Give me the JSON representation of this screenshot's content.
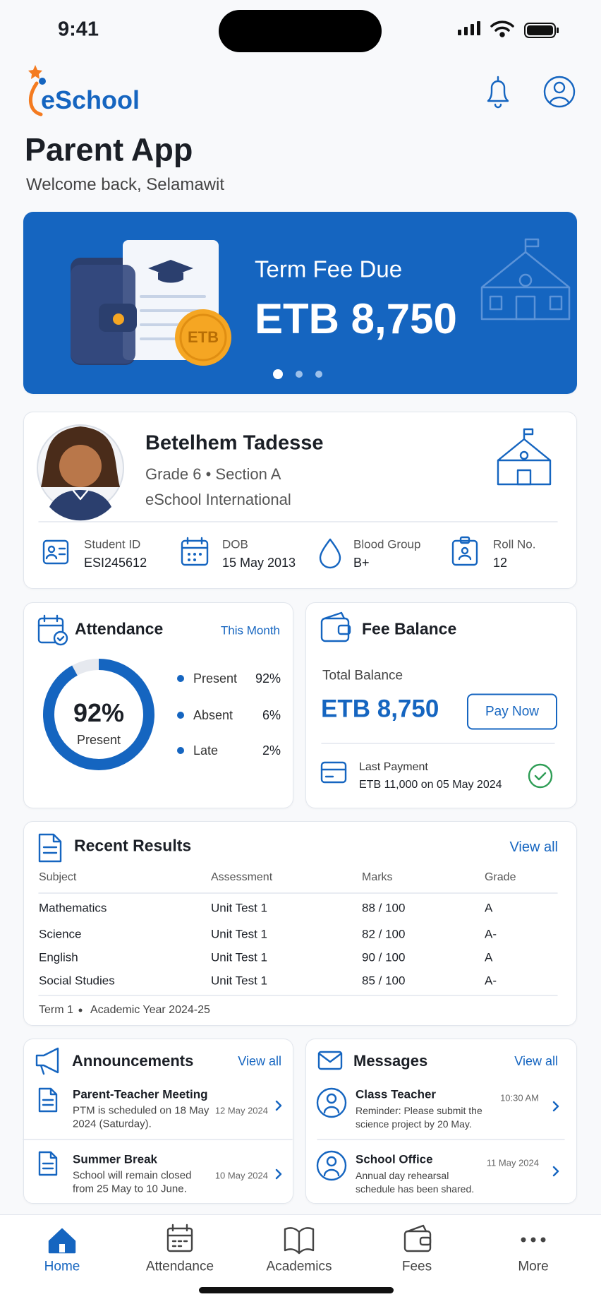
{
  "status_bar": {
    "time": "9:41"
  },
  "header": {
    "logo": "eSchool",
    "title": "Parent App",
    "subtitle": "Welcome back, Selamawit"
  },
  "banner": {
    "title": "Term Fee Due",
    "amount": "ETB 8,750",
    "coin_label": "ETB"
  },
  "student": {
    "name": "Betelhem Tadesse",
    "grade": "Grade 6 • Section A",
    "school": "eSchool International",
    "fields": [
      {
        "label": "Student ID",
        "value": "ESI245612"
      },
      {
        "label": "DOB",
        "value": "15 May 2013"
      },
      {
        "label": "Blood Group",
        "value": "B+"
      },
      {
        "label": "Roll No.",
        "value": "12"
      }
    ]
  },
  "attendance": {
    "title": "Attendance",
    "period": "This Month",
    "center_value": "92%",
    "center_label": "Present",
    "items": [
      {
        "label": "Present",
        "value": "92%"
      },
      {
        "label": "Absent",
        "value": "6%"
      },
      {
        "label": "Late",
        "value": "2%"
      }
    ]
  },
  "fee_balance": {
    "title": "Fee Balance",
    "total_label": "Total Balance",
    "total": "ETB 8,750",
    "button": "Pay Now",
    "last_payment_label": "Last Payment",
    "last_payment": "ETB 11,000 on 05 May 2024"
  },
  "results": {
    "title": "Recent Results",
    "link": "View all",
    "columns": [
      "Subject",
      "Assessment",
      "Marks",
      "Grade"
    ],
    "rows": [
      [
        "Mathematics",
        "Unit Test 1",
        "88 / 100",
        "A"
      ],
      [
        "Science",
        "Unit Test 1",
        "82 / 100",
        "A-"
      ],
      [
        "English",
        "Unit Test 1",
        "90 / 100",
        "A"
      ],
      [
        "Social Studies",
        "Unit Test 1",
        "85 / 100",
        "A-"
      ]
    ],
    "footer_term": "Term 1",
    "footer_year": "Academic Year 2024-25"
  },
  "announcements": {
    "title": "Announcements",
    "link": "View all",
    "items": [
      {
        "title": "Parent-Teacher Meeting",
        "text": [
          "PTM is scheduled on 18 May",
          "2024 (Saturday)."
        ],
        "date": "12 May 2024"
      },
      {
        "title": "Summer Break",
        "text": [
          "School will remain closed",
          "from 25 May to 10 June."
        ],
        "date": "10 May 2024"
      }
    ]
  },
  "messages": {
    "title": "Messages",
    "link": "View all",
    "items": [
      {
        "from": "Class Teacher",
        "text": [
          "Reminder: Please submit the",
          "science project by 20 May."
        ],
        "time": "10:30 AM"
      },
      {
        "from": "School Office",
        "text": [
          "Annual day rehearsal",
          "schedule has been shared."
        ],
        "time": "11 May 2024"
      }
    ]
  },
  "nav": [
    {
      "label": "Home"
    },
    {
      "label": "Attendance"
    },
    {
      "label": "Academics"
    },
    {
      "label": "Fees"
    },
    {
      "label": "More"
    }
  ]
}
